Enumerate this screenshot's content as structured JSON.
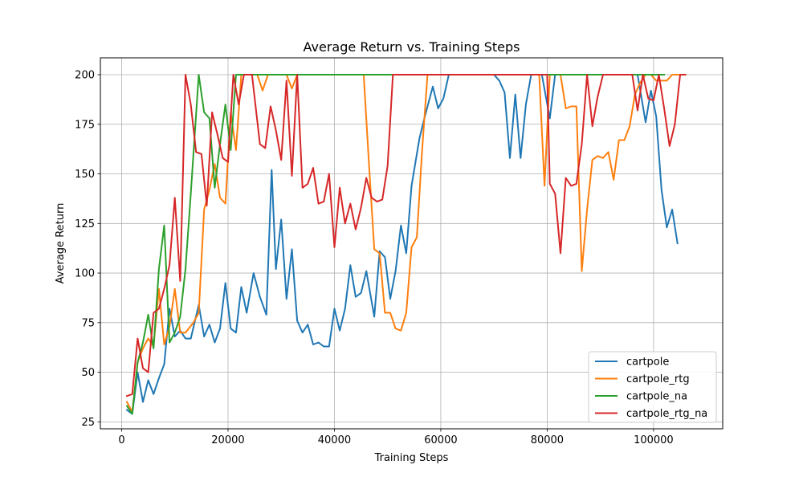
{
  "chart_data": {
    "type": "line",
    "title": "Average Return vs. Training Steps",
    "xlabel": "Training Steps",
    "ylabel": "Average Return",
    "xlim": [
      -4000,
      113000
    ],
    "ylim": [
      21.5,
      208.5
    ],
    "xticks": [
      0,
      20000,
      40000,
      60000,
      80000,
      100000
    ],
    "yticks": [
      25,
      50,
      75,
      100,
      125,
      150,
      175,
      200
    ],
    "grid": true,
    "legend_position": "lower-right",
    "series": [
      {
        "name": "cartpole",
        "color": "#1f77b4",
        "points": [
          [
            1000,
            31
          ],
          [
            2000,
            29
          ],
          [
            3000,
            50
          ],
          [
            4000,
            35
          ],
          [
            5000,
            46
          ],
          [
            6000,
            39
          ],
          [
            7000,
            47
          ],
          [
            8000,
            54
          ],
          [
            9000,
            82
          ],
          [
            10000,
            68
          ],
          [
            11000,
            71
          ],
          [
            12000,
            67
          ],
          [
            13000,
            67
          ],
          [
            14500,
            84
          ],
          [
            15500,
            68
          ],
          [
            16500,
            74
          ],
          [
            17500,
            65
          ],
          [
            18500,
            72
          ],
          [
            19500,
            95
          ],
          [
            20500,
            72
          ],
          [
            21500,
            70
          ],
          [
            22500,
            93
          ],
          [
            23500,
            80
          ],
          [
            24800,
            100
          ],
          [
            26000,
            88
          ],
          [
            27200,
            79
          ],
          [
            28200,
            152
          ],
          [
            29000,
            102
          ],
          [
            30000,
            127
          ],
          [
            31000,
            87
          ],
          [
            32000,
            112
          ],
          [
            33000,
            76
          ],
          [
            34000,
            70
          ],
          [
            35000,
            74
          ],
          [
            36000,
            64
          ],
          [
            37000,
            65
          ],
          [
            38000,
            63
          ],
          [
            39000,
            63
          ],
          [
            40000,
            82
          ],
          [
            41000,
            71
          ],
          [
            42000,
            82
          ],
          [
            43000,
            104
          ],
          [
            44000,
            88
          ],
          [
            45000,
            90
          ],
          [
            46000,
            101
          ],
          [
            47500,
            78
          ],
          [
            48500,
            111
          ],
          [
            49500,
            108
          ],
          [
            50500,
            87
          ],
          [
            51500,
            101
          ],
          [
            52500,
            124
          ],
          [
            53500,
            110
          ],
          [
            54500,
            144
          ],
          [
            56000,
            168
          ],
          [
            57000,
            179
          ],
          [
            58500,
            194
          ],
          [
            59500,
            183
          ],
          [
            60500,
            188
          ],
          [
            61500,
            200
          ],
          [
            62500,
            200
          ],
          [
            70000,
            200
          ],
          [
            71000,
            197
          ],
          [
            72000,
            191
          ],
          [
            73000,
            158
          ],
          [
            74000,
            190
          ],
          [
            75000,
            158
          ],
          [
            76000,
            185
          ],
          [
            77000,
            200
          ],
          [
            78000,
            200
          ],
          [
            79000,
            200
          ],
          [
            80500,
            178
          ],
          [
            81500,
            200
          ],
          [
            82500,
            200
          ],
          [
            97000,
            200
          ],
          [
            98500,
            176
          ],
          [
            99500,
            192
          ],
          [
            100500,
            179
          ],
          [
            101500,
            142
          ],
          [
            102500,
            123
          ],
          [
            103500,
            132
          ],
          [
            104500,
            115
          ]
        ]
      },
      {
        "name": "cartpole_rtg",
        "color": "#ff7f0e",
        "points": [
          [
            1000,
            35
          ],
          [
            2000,
            30
          ],
          [
            3000,
            55
          ],
          [
            4000,
            62
          ],
          [
            5000,
            67
          ],
          [
            6000,
            63
          ],
          [
            7000,
            92
          ],
          [
            8000,
            64
          ],
          [
            9000,
            73
          ],
          [
            10000,
            92
          ],
          [
            11000,
            70
          ],
          [
            12000,
            70
          ],
          [
            13500,
            75
          ],
          [
            14500,
            80
          ],
          [
            15500,
            132
          ],
          [
            16500,
            142
          ],
          [
            17500,
            155
          ],
          [
            18500,
            138
          ],
          [
            19500,
            135
          ],
          [
            20500,
            181
          ],
          [
            21500,
            162
          ],
          [
            22500,
            200
          ],
          [
            23500,
            200
          ],
          [
            25500,
            200
          ],
          [
            26500,
            192
          ],
          [
            27500,
            200
          ],
          [
            31000,
            200
          ],
          [
            32000,
            193
          ],
          [
            33000,
            200
          ],
          [
            45500,
            200
          ],
          [
            46500,
            155
          ],
          [
            47500,
            112
          ],
          [
            48500,
            110
          ],
          [
            49500,
            80
          ],
          [
            50500,
            80
          ],
          [
            51500,
            72
          ],
          [
            52500,
            71
          ],
          [
            53500,
            80
          ],
          [
            54500,
            113
          ],
          [
            55500,
            118
          ],
          [
            56500,
            162
          ],
          [
            57500,
            200
          ],
          [
            78500,
            200
          ],
          [
            79500,
            144
          ],
          [
            80500,
            200
          ],
          [
            82500,
            200
          ],
          [
            83500,
            183
          ],
          [
            84500,
            184
          ],
          [
            85500,
            184
          ],
          [
            86500,
            101
          ],
          [
            87500,
            132
          ],
          [
            88500,
            157
          ],
          [
            89500,
            159
          ],
          [
            90500,
            158
          ],
          [
            91500,
            161
          ],
          [
            92500,
            147
          ],
          [
            93500,
            167
          ],
          [
            94500,
            167
          ],
          [
            95500,
            174
          ],
          [
            96500,
            190
          ],
          [
            97500,
            196
          ],
          [
            98500,
            200
          ],
          [
            99500,
            200
          ],
          [
            100500,
            197
          ],
          [
            102500,
            197
          ],
          [
            103500,
            200
          ],
          [
            105000,
            200
          ]
        ]
      },
      {
        "name": "cartpole_na",
        "color": "#2ca02c",
        "points": [
          [
            1000,
            33
          ],
          [
            2000,
            29
          ],
          [
            3000,
            55
          ],
          [
            4000,
            65
          ],
          [
            5000,
            79
          ],
          [
            6000,
            62
          ],
          [
            7000,
            102
          ],
          [
            8000,
            124
          ],
          [
            9000,
            65
          ],
          [
            10000,
            70
          ],
          [
            11000,
            78
          ],
          [
            12000,
            102
          ],
          [
            13000,
            140
          ],
          [
            14500,
            200
          ],
          [
            15500,
            181
          ],
          [
            16500,
            178
          ],
          [
            17500,
            143
          ],
          [
            18500,
            165
          ],
          [
            19500,
            185
          ],
          [
            20500,
            162
          ],
          [
            21500,
            200
          ],
          [
            102000,
            200
          ]
        ]
      },
      {
        "name": "cartpole_rtg_na",
        "color": "#d62728",
        "points": [
          [
            1000,
            38
          ],
          [
            2000,
            39
          ],
          [
            3000,
            67
          ],
          [
            4000,
            52
          ],
          [
            5000,
            50
          ],
          [
            6000,
            80
          ],
          [
            7000,
            82
          ],
          [
            8000,
            92
          ],
          [
            9000,
            104
          ],
          [
            10000,
            138
          ],
          [
            11000,
            96
          ],
          [
            12000,
            200
          ],
          [
            13000,
            185
          ],
          [
            14000,
            161
          ],
          [
            15000,
            160
          ],
          [
            16000,
            134
          ],
          [
            17000,
            181
          ],
          [
            18000,
            170
          ],
          [
            19000,
            158
          ],
          [
            20000,
            156
          ],
          [
            21000,
            200
          ],
          [
            22000,
            185
          ],
          [
            23000,
            200
          ],
          [
            24500,
            200
          ],
          [
            26000,
            165
          ],
          [
            27000,
            163
          ],
          [
            28000,
            184
          ],
          [
            29000,
            172
          ],
          [
            30000,
            157
          ],
          [
            31000,
            197
          ],
          [
            32000,
            149
          ],
          [
            33000,
            200
          ],
          [
            34000,
            143
          ],
          [
            35000,
            145
          ],
          [
            36000,
            153
          ],
          [
            37000,
            135
          ],
          [
            38000,
            136
          ],
          [
            39000,
            150
          ],
          [
            40000,
            113
          ],
          [
            41000,
            143
          ],
          [
            42000,
            125
          ],
          [
            43000,
            135
          ],
          [
            44000,
            122
          ],
          [
            45000,
            133
          ],
          [
            46000,
            148
          ],
          [
            47000,
            138
          ],
          [
            48000,
            136
          ],
          [
            49000,
            137
          ],
          [
            50000,
            154
          ],
          [
            51000,
            200
          ],
          [
            80000,
            200
          ],
          [
            80500,
            145
          ],
          [
            81500,
            140
          ],
          [
            82500,
            110
          ],
          [
            83500,
            148
          ],
          [
            84500,
            144
          ],
          [
            85500,
            145
          ],
          [
            86500,
            165
          ],
          [
            87500,
            200
          ],
          [
            88500,
            174
          ],
          [
            89500,
            189
          ],
          [
            90500,
            200
          ],
          [
            96000,
            200
          ],
          [
            97000,
            182
          ],
          [
            98000,
            200
          ],
          [
            99000,
            188
          ],
          [
            100000,
            187
          ],
          [
            101000,
            200
          ],
          [
            102000,
            183
          ],
          [
            103000,
            164
          ],
          [
            104000,
            175
          ],
          [
            105000,
            200
          ],
          [
            106000,
            200
          ]
        ]
      }
    ]
  }
}
